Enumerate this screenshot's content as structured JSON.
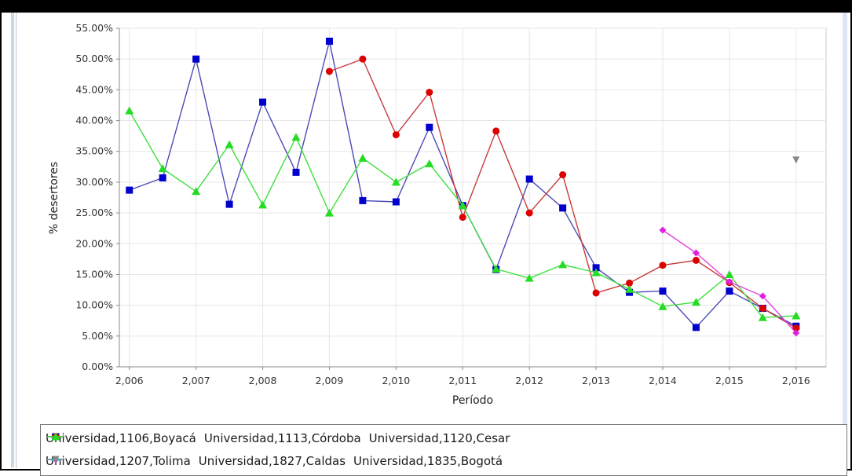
{
  "chart_data": {
    "type": "line",
    "xlabel": "Período",
    "ylabel": "% desertores",
    "ylim": [
      0,
      0.55
    ],
    "y_ticks": [
      0,
      0.05,
      0.1,
      0.15,
      0.2,
      0.25,
      0.3,
      0.35,
      0.4,
      0.45,
      0.5,
      0.55
    ],
    "y_tick_labels": [
      "0.00%",
      "5.00%",
      "10.00%",
      "15.00%",
      "20.00%",
      "25.00%",
      "30.00%",
      "35.00%",
      "40.00%",
      "45.00%",
      "50.00%",
      "55.00%"
    ],
    "xlim": [
      2005.85,
      2016.45
    ],
    "x_ticks": [
      2006,
      2007,
      2008,
      2009,
      2010,
      2011,
      2012,
      2013,
      2014,
      2015,
      2016
    ],
    "x_tick_labels": [
      "2,006",
      "2,007",
      "2,008",
      "2,009",
      "2,010",
      "2,011",
      "2,012",
      "2,013",
      "2,014",
      "2,015",
      "2,016"
    ],
    "grid": true,
    "legend_position": "bottom",
    "series": [
      {
        "name": "Universidad,1106,Boyacá",
        "color": "#0000cc",
        "line_color": "#4a4ab8",
        "marker": "square",
        "points": [
          [
            2006,
            0.287
          ],
          [
            2006.5,
            0.307
          ],
          [
            2007,
            0.5
          ],
          [
            2007.5,
            0.264
          ],
          [
            2008,
            0.43
          ],
          [
            2008.5,
            0.316
          ],
          [
            2009,
            0.529
          ],
          [
            2009.5,
            0.27
          ],
          [
            2010,
            0.268
          ],
          [
            2010.5,
            0.389
          ],
          [
            2011,
            0.262
          ],
          [
            2011.5,
            0.158
          ],
          [
            2012,
            0.305
          ],
          [
            2012.5,
            0.258
          ],
          [
            2013,
            0.161
          ],
          [
            2013.5,
            0.121
          ],
          [
            2014,
            0.123
          ],
          [
            2014.5,
            0.064
          ],
          [
            2015,
            0.123
          ],
          [
            2015.5,
            0.095
          ],
          [
            2016,
            0.066
          ]
        ]
      },
      {
        "name": "Universidad,1113,Córdoba",
        "color": "#dd0000",
        "line_color": "#c83a3a",
        "marker": "circle",
        "points": [
          [
            2009,
            0.48
          ],
          [
            2009.5,
            0.5
          ],
          [
            2010,
            0.377
          ],
          [
            2010.5,
            0.446
          ],
          [
            2011,
            0.243
          ],
          [
            2011.5,
            0.383
          ],
          [
            2012,
            0.25
          ],
          [
            2012.5,
            0.312
          ],
          [
            2013,
            0.12
          ],
          [
            2013.5,
            0.136
          ],
          [
            2014,
            0.165
          ],
          [
            2014.5,
            0.173
          ],
          [
            2015,
            0.137
          ],
          [
            2015.5,
            0.095
          ],
          [
            2016,
            0.063
          ]
        ]
      },
      {
        "name": "Universidad,1120,Cesar",
        "color": "#22dd22",
        "line_color": "#3ee03e",
        "marker": "triangle",
        "points": [
          [
            2006,
            0.416
          ],
          [
            2006.5,
            0.322
          ],
          [
            2007,
            0.285
          ],
          [
            2007.5,
            0.361
          ],
          [
            2008,
            0.263
          ],
          [
            2008.5,
            0.373
          ],
          [
            2009,
            0.25
          ],
          [
            2009.5,
            0.339
          ],
          [
            2010,
            0.3
          ],
          [
            2010.5,
            0.33
          ],
          [
            2011,
            0.262
          ],
          [
            2011.5,
            0.159
          ],
          [
            2012,
            0.144
          ],
          [
            2012.5,
            0.166
          ],
          [
            2013,
            0.153
          ],
          [
            2013.5,
            0.126
          ],
          [
            2014,
            0.098
          ],
          [
            2014.5,
            0.105
          ],
          [
            2015,
            0.15
          ],
          [
            2015.5,
            0.08
          ],
          [
            2016,
            0.083
          ]
        ]
      },
      {
        "name": "Universidad,1207,Tolima",
        "color": "#e020e0",
        "line_color": "#e040e0",
        "marker": "diamond",
        "points": [
          [
            2014,
            0.222
          ],
          [
            2014.5,
            0.185
          ],
          [
            2015,
            0.138
          ],
          [
            2015.5,
            0.115
          ],
          [
            2016,
            0.055
          ]
        ]
      },
      {
        "name": "Universidad,1827,Caldas",
        "color": "#00e0e0",
        "line_color": "#00e0e0",
        "marker": "hbar",
        "points": []
      },
      {
        "name": "Universidad,1835,Bogotá",
        "color": "#888888",
        "line_color": "#888888",
        "marker": "down-triangle",
        "points": [
          [
            2016,
            0.336
          ]
        ]
      }
    ]
  }
}
